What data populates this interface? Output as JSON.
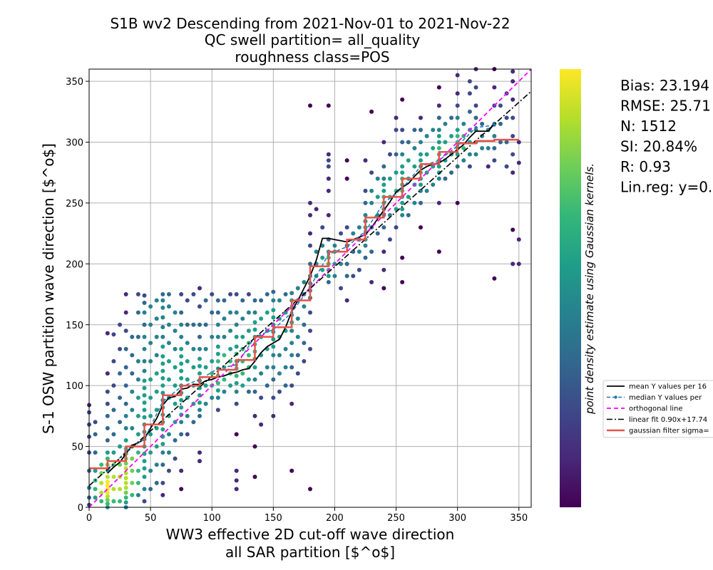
{
  "chart_data": {
    "type": "scatter",
    "title_lines": [
      "S1B wv2 Descending from 2021-Nov-01 to 2021-Nov-22",
      "QC swell partition= all_quality",
      "roughness class=POS"
    ],
    "xlabel_lines": [
      "WW3 effective 2D cut-off wave direction",
      "all SAR partition [$^o$]"
    ],
    "ylabel": "S-1 OSW partition wave direction [$^o$]",
    "xlim": [
      0,
      360
    ],
    "ylim": [
      0,
      360
    ],
    "xticks": [
      0,
      50,
      100,
      150,
      200,
      250,
      300,
      350
    ],
    "yticks": [
      0,
      50,
      100,
      150,
      200,
      250,
      300,
      350
    ],
    "grid": true,
    "colorbar": {
      "label": "point density estimate using Gaussian kernels.",
      "colormap": "viridis",
      "colors": [
        "#440154",
        "#482878",
        "#3e4989",
        "#31688e",
        "#26828e",
        "#1f9e89",
        "#35b779",
        "#6ece58",
        "#b5de2b",
        "#fde725"
      ]
    },
    "stats": [
      "Bias: 23.194",
      "RMSE: 25.71",
      "N: 1512",
      "SI: 20.84%",
      "R: 0.93",
      "Lin.reg: y=0."
    ],
    "legend": {
      "placement": "right-outside",
      "entries": [
        {
          "label": "mean Y values per 16",
          "style": "solid",
          "color": "#000000"
        },
        {
          "label": "median Y values per",
          "style": "dashed-dot-marker",
          "color": "#1f77b4"
        },
        {
          "label": "orthogonal line",
          "style": "dashed",
          "color": "#ff00ff"
        },
        {
          "label": "linear fit 0.90x+17.74",
          "style": "dashdot",
          "color": "#000000"
        },
        {
          "label": "gaussian filter sigma=",
          "style": "solid-thick",
          "color": "#e8524a"
        }
      ]
    },
    "series": [
      {
        "name": "mean Y values per 16",
        "color": "#000000",
        "x": [
          15,
          20,
          25,
          30,
          35,
          40,
          45,
          50,
          55,
          60,
          65,
          70,
          75,
          80,
          85,
          90,
          95,
          100,
          105,
          110,
          115,
          120,
          125,
          130,
          135,
          140,
          145,
          150,
          155,
          160,
          165,
          170,
          175,
          180,
          185,
          190,
          195,
          200,
          205,
          210,
          215,
          220,
          225,
          230,
          235,
          240,
          245,
          250,
          255,
          260,
          265,
          270,
          275,
          280,
          285,
          290,
          295,
          300,
          305,
          310,
          315,
          320,
          325,
          330
        ],
        "y": [
          28,
          33,
          37,
          44,
          51,
          53,
          56,
          65,
          73,
          84,
          90,
          91,
          97,
          98,
          101,
          101,
          104,
          105,
          107,
          108,
          110,
          111,
          113,
          114,
          120,
          127,
          132,
          135,
          138,
          148,
          161,
          170,
          180,
          190,
          203,
          221,
          221,
          220,
          219,
          218,
          220,
          222,
          224,
          230,
          237,
          244,
          251,
          259,
          263,
          266,
          272,
          277,
          280,
          282,
          283,
          286,
          290,
          294,
          298,
          304,
          309,
          309,
          309,
          315
        ]
      },
      {
        "name": "median Y values per",
        "color": "#1f77b4",
        "x": [
          15,
          30,
          45,
          60,
          75,
          90,
          105,
          120,
          135,
          150,
          165,
          180,
          195,
          210,
          225,
          240,
          255,
          270,
          285,
          300,
          315,
          330
        ],
        "y": [
          30,
          46,
          56,
          87,
          99,
          105,
          114,
          117,
          140,
          146,
          160,
          181,
          208,
          214,
          227,
          250,
          262,
          280,
          285,
          297,
          312,
          314
        ]
      },
      {
        "name": "orthogonal line",
        "color": "#ff00ff",
        "x": [
          0,
          360
        ],
        "y": [
          0,
          360
        ]
      },
      {
        "name": "linear fit 0.90x+17.74",
        "color": "#000000",
        "x": [
          0,
          360
        ],
        "y": [
          17.74,
          341.74
        ]
      },
      {
        "name": "gaussian filter sigma=",
        "color": "#e8524a",
        "x": [
          0,
          15,
          15,
          30,
          30,
          45,
          45,
          60,
          60,
          75,
          75,
          90,
          90,
          105,
          105,
          120,
          120,
          135,
          135,
          150,
          150,
          165,
          165,
          180,
          180,
          195,
          195,
          210,
          210,
          225,
          225,
          240,
          240,
          255,
          255,
          270,
          270,
          285,
          285,
          300,
          300,
          315,
          315,
          330,
          330,
          350
        ],
        "y": [
          32,
          32,
          38,
          38,
          50,
          50,
          68,
          68,
          92,
          92,
          100,
          100,
          107,
          107,
          113,
          113,
          121,
          121,
          140,
          140,
          148,
          148,
          170,
          170,
          198,
          198,
          210,
          210,
          220,
          220,
          238,
          238,
          255,
          255,
          270,
          270,
          282,
          282,
          292,
          292,
          299,
          299,
          301,
          301,
          302,
          302
        ]
      }
    ],
    "scatter_clusters": [
      {
        "x": 0,
        "y": [
          2,
          8,
          16,
          30,
          45,
          58,
          68,
          78,
          84
        ]
      },
      {
        "x": 5,
        "y": [
          8,
          15,
          22,
          30,
          45,
          60,
          70
        ]
      },
      {
        "x": 10,
        "y": [
          5,
          12,
          20,
          28,
          35
        ]
      },
      {
        "x": 15,
        "y": [
          0,
          3,
          6,
          9,
          12,
          15,
          18,
          21,
          25,
          30,
          35,
          40,
          45,
          55,
          65,
          75,
          85,
          95,
          110,
          143
        ]
      },
      {
        "x": 20,
        "y": [
          5,
          15,
          25,
          35,
          45,
          60,
          80,
          100,
          120,
          142
        ]
      },
      {
        "x": 25,
        "y": [
          5,
          15,
          25,
          35,
          50,
          70,
          90,
          110,
          130,
          150
        ]
      },
      {
        "x": 30,
        "y": [
          0,
          4,
          8,
          12,
          16,
          20,
          24,
          28,
          32,
          36,
          40,
          44,
          48,
          55,
          65,
          75,
          85,
          100,
          115,
          130,
          145,
          160,
          175
        ]
      },
      {
        "x": 35,
        "y": [
          10,
          20,
          30,
          40,
          50,
          65,
          80,
          95,
          110,
          125,
          140
        ]
      },
      {
        "x": 40,
        "y": [
          10,
          20,
          30,
          45,
          60,
          75,
          90,
          105,
          120,
          140,
          160,
          175
        ]
      },
      {
        "x": 45,
        "y": [
          5,
          15,
          25,
          32,
          38,
          44,
          50,
          56,
          62,
          68,
          74,
          80,
          86,
          92,
          98,
          104,
          112,
          120,
          130,
          140,
          150,
          160,
          168,
          174
        ]
      },
      {
        "x": 50,
        "y": [
          15,
          30,
          45,
          60,
          75,
          90,
          105,
          120,
          135,
          150,
          165
        ]
      },
      {
        "x": 55,
        "y": [
          20,
          35,
          50,
          65,
          80,
          95,
          110,
          125,
          140,
          155,
          170
        ]
      },
      {
        "x": 60,
        "y": [
          10,
          20,
          35,
          45,
          52,
          58,
          64,
          70,
          76,
          82,
          88,
          94,
          100,
          106,
          112,
          118,
          124,
          132,
          140,
          148,
          156,
          164,
          170,
          175
        ]
      },
      {
        "x": 65,
        "y": [
          30,
          45,
          60,
          75,
          90,
          105,
          120,
          135,
          150,
          165,
          175
        ]
      },
      {
        "x": 70,
        "y": [
          40,
          55,
          70,
          85,
          100,
          115,
          130,
          145,
          160
        ]
      },
      {
        "x": 75,
        "y": [
          15,
          30,
          60,
          70,
          76,
          82,
          88,
          94,
          100,
          106,
          112,
          118,
          124,
          130,
          140,
          150,
          160,
          175
        ]
      },
      {
        "x": 80,
        "y": [
          60,
          75,
          90,
          105,
          120,
          135,
          150,
          170
        ]
      },
      {
        "x": 85,
        "y": [
          70,
          85,
          100,
          115,
          130,
          150,
          175
        ]
      },
      {
        "x": 90,
        "y": [
          38,
          45,
          75,
          80,
          86,
          92,
          98,
          104,
          110,
          116,
          122,
          130,
          140,
          150,
          165,
          180
        ]
      },
      {
        "x": 95,
        "y": [
          85,
          100,
          115,
          130,
          150,
          170
        ]
      },
      {
        "x": 100,
        "y": [
          90,
          100,
          110,
          120,
          140,
          160,
          175
        ]
      },
      {
        "x": 105,
        "y": [
          80,
          90,
          96,
          102,
          108,
          114,
          120,
          126,
          132,
          140,
          150,
          160,
          170
        ]
      },
      {
        "x": 110,
        "y": [
          95,
          105,
          115,
          125,
          140,
          155,
          170
        ]
      },
      {
        "x": 115,
        "y": [
          100,
          110,
          120,
          130,
          145,
          160,
          175
        ]
      },
      {
        "x": 120,
        "y": [
          15,
          22,
          30,
          60,
          85,
          95,
          102,
          108,
          114,
          120,
          126,
          132,
          140,
          150,
          160,
          175
        ]
      },
      {
        "x": 125,
        "y": [
          100,
          110,
          120,
          130,
          140,
          155,
          170
        ]
      },
      {
        "x": 130,
        "y": [
          95,
          105,
          115,
          125,
          135,
          145,
          160,
          175
        ]
      },
      {
        "x": 135,
        "y": [
          25,
          50,
          75,
          95,
          105,
          115,
          122,
          128,
          134,
          140,
          146,
          152,
          160,
          170
        ]
      },
      {
        "x": 140,
        "y": [
          68,
          90,
          110,
          125,
          140,
          155,
          170
        ]
      },
      {
        "x": 145,
        "y": [
          100,
          115,
          130,
          145,
          160,
          175
        ]
      },
      {
        "x": 150,
        "y": [
          75,
          90,
          105,
          115,
          125,
          132,
          138,
          144,
          150,
          156,
          162,
          170,
          177
        ]
      },
      {
        "x": 155,
        "y": [
          95,
          110,
          125,
          140,
          155,
          170
        ]
      },
      {
        "x": 160,
        "y": [
          100,
          115,
          130,
          145,
          160,
          175
        ]
      },
      {
        "x": 165,
        "y": [
          30,
          85,
          100,
          115,
          125,
          135,
          145,
          152,
          158,
          164,
          170,
          176
        ]
      },
      {
        "x": 170,
        "y": [
          110,
          125,
          140,
          155,
          170,
          180
        ]
      },
      {
        "x": 175,
        "y": [
          120,
          135,
          150,
          165,
          175,
          185
        ]
      },
      {
        "x": 180,
        "y": [
          15,
          130,
          145,
          160,
          172,
          178,
          184,
          190,
          200,
          215,
          225,
          240,
          250,
          330
        ]
      },
      {
        "x": 185,
        "y": [
          190,
          200,
          210,
          245
        ]
      },
      {
        "x": 190,
        "y": [
          195,
          205,
          215,
          230
        ]
      },
      {
        "x": 195,
        "y": [
          185,
          190,
          195,
          200,
          205,
          210,
          220,
          240,
          260,
          270,
          280,
          285,
          290,
          330
        ]
      },
      {
        "x": 200,
        "y": [
          190,
          200,
          210,
          215
        ]
      },
      {
        "x": 205,
        "y": [
          180,
          200,
          225
        ]
      },
      {
        "x": 210,
        "y": [
          170,
          190,
          200,
          215,
          230,
          270,
          285
        ]
      },
      {
        "x": 215,
        "y": [
          190,
          210,
          225
        ]
      },
      {
        "x": 220,
        "y": [
          195,
          210,
          220,
          230
        ]
      },
      {
        "x": 225,
        "y": [
          205,
          215,
          220,
          225,
          230,
          235,
          240,
          250,
          260,
          285
        ]
      },
      {
        "x": 230,
        "y": [
          185,
          210,
          230,
          250,
          260,
          275,
          325
        ]
      },
      {
        "x": 235,
        "y": [
          225,
          240,
          255,
          270
        ]
      },
      {
        "x": 240,
        "y": [
          180,
          195,
          210,
          230,
          240,
          245,
          250,
          255,
          260,
          265,
          270,
          280,
          300
        ]
      },
      {
        "x": 245,
        "y": [
          220,
          240,
          255,
          270,
          290
        ]
      },
      {
        "x": 250,
        "y": [
          230,
          245,
          260,
          275,
          290,
          310,
          320
        ]
      },
      {
        "x": 255,
        "y": [
          185,
          205,
          240,
          245,
          250,
          255,
          260,
          265,
          270,
          275,
          280,
          290,
          300,
          310,
          335
        ]
      },
      {
        "x": 260,
        "y": [
          240,
          255,
          270,
          285,
          300
        ]
      },
      {
        "x": 265,
        "y": [
          250,
          265,
          280,
          295,
          310
        ]
      },
      {
        "x": 270,
        "y": [
          230,
          250,
          260,
          265,
          270,
          275,
          280,
          285,
          290,
          300,
          310,
          320
        ]
      },
      {
        "x": 275,
        "y": [
          260,
          275,
          290,
          305
        ]
      },
      {
        "x": 280,
        "y": [
          265,
          280,
          295,
          310
        ]
      },
      {
        "x": 285,
        "y": [
          210,
          250,
          270,
          275,
          280,
          285,
          290,
          295,
          300,
          305,
          310,
          320,
          330,
          345
        ]
      },
      {
        "x": 290,
        "y": [
          270,
          285,
          300,
          315
        ]
      },
      {
        "x": 295,
        "y": [
          275,
          290,
          305,
          320
        ]
      },
      {
        "x": 300,
        "y": [
          250,
          280,
          290,
          295,
          300,
          305,
          310,
          320,
          330,
          340,
          355
        ]
      },
      {
        "x": 305,
        "y": [
          285,
          295,
          305,
          315
        ]
      },
      {
        "x": 310,
        "y": [
          280,
          290,
          300,
          310,
          325,
          340,
          350
        ]
      },
      {
        "x": 315,
        "y": [
          290,
          300,
          310,
          320,
          330,
          345,
          360
        ]
      },
      {
        "x": 320,
        "y": [
          295,
          305,
          315
        ]
      },
      {
        "x": 325,
        "y": [
          280,
          295,
          310
        ]
      },
      {
        "x": 330,
        "y": [
          188,
          285,
          295,
          305,
          315,
          330,
          345,
          360
        ]
      },
      {
        "x": 335,
        "y": [
          300,
          315,
          330
        ]
      },
      {
        "x": 340,
        "y": [
          280,
          300,
          320,
          340
        ]
      },
      {
        "x": 345,
        "y": [
          200,
          228,
          275,
          290,
          305,
          320,
          335,
          350,
          358
        ]
      },
      {
        "x": 350,
        "y": [
          200,
          220,
          283,
          300
        ]
      }
    ]
  }
}
